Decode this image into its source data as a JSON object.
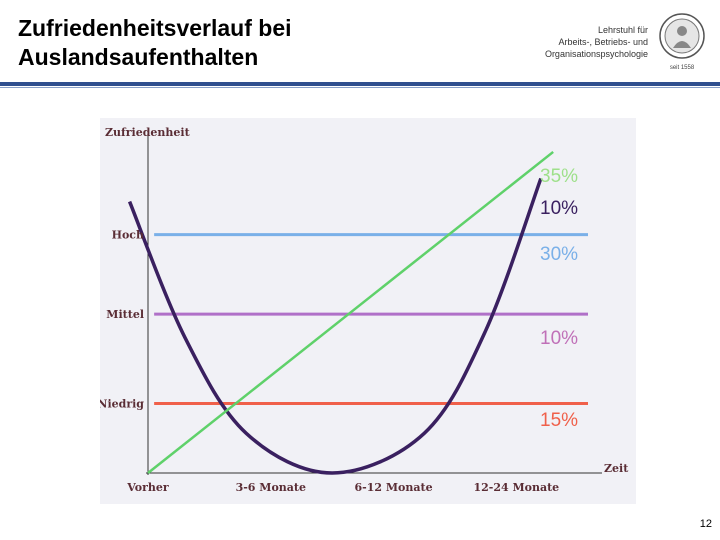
{
  "slide": {
    "title_line1": "Zufriedenheitsverlauf bei",
    "title_line2": "Auslandsaufenthalten",
    "logo_line1": "Lehrstuhl für",
    "logo_line2": "Arbeits-, Betriebs- und",
    "logo_line3": "Organisationspsychologie",
    "seal_caption": "seit 1558",
    "page_number": "12",
    "header_rule_color": "#2f4f8f"
  },
  "chart_data": {
    "type": "line",
    "ylabel": "Zufriedenheit",
    "xlabel": "Zeit",
    "x_categories": [
      "Vorher",
      "3-6 Monate",
      "6-12 Monate",
      "12-24 Monate"
    ],
    "y_levels": [
      "Niedrig",
      "Mittel",
      "Hoch"
    ],
    "ylim": [
      0,
      10
    ],
    "xlim": [
      0,
      3.6
    ],
    "grid": false,
    "series": [
      {
        "color": "#3a2060",
        "style": "u-curve",
        "points": [
          [
            -0.15,
            8.2
          ],
          [
            0.3,
            4.1
          ],
          [
            0.8,
            1.2
          ],
          [
            1.5,
            0.0
          ],
          [
            2.25,
            1.2
          ],
          [
            2.75,
            4.3
          ],
          [
            3.2,
            8.9
          ]
        ]
      },
      {
        "color": "#5fd16a",
        "style": "diagonal",
        "points": [
          [
            0.0,
            0.0
          ],
          [
            3.3,
            9.7
          ]
        ]
      },
      {
        "color": "#7ab0e8",
        "level": "Hoch",
        "value": 7.2
      },
      {
        "color": "#b070c8",
        "level": "Mittel",
        "value": 4.8
      },
      {
        "color": "#f0604a",
        "level": "Niedrig",
        "value": 2.1
      }
    ],
    "percent_labels": [
      {
        "text": "35%",
        "color": "#9ee08a"
      },
      {
        "text": "10%",
        "color": "#3a2060"
      },
      {
        "text": "30%",
        "color": "#7ab0e8"
      },
      {
        "text": "10%",
        "color": "#c070b8"
      },
      {
        "text": "15%",
        "color": "#f0604a"
      }
    ]
  }
}
